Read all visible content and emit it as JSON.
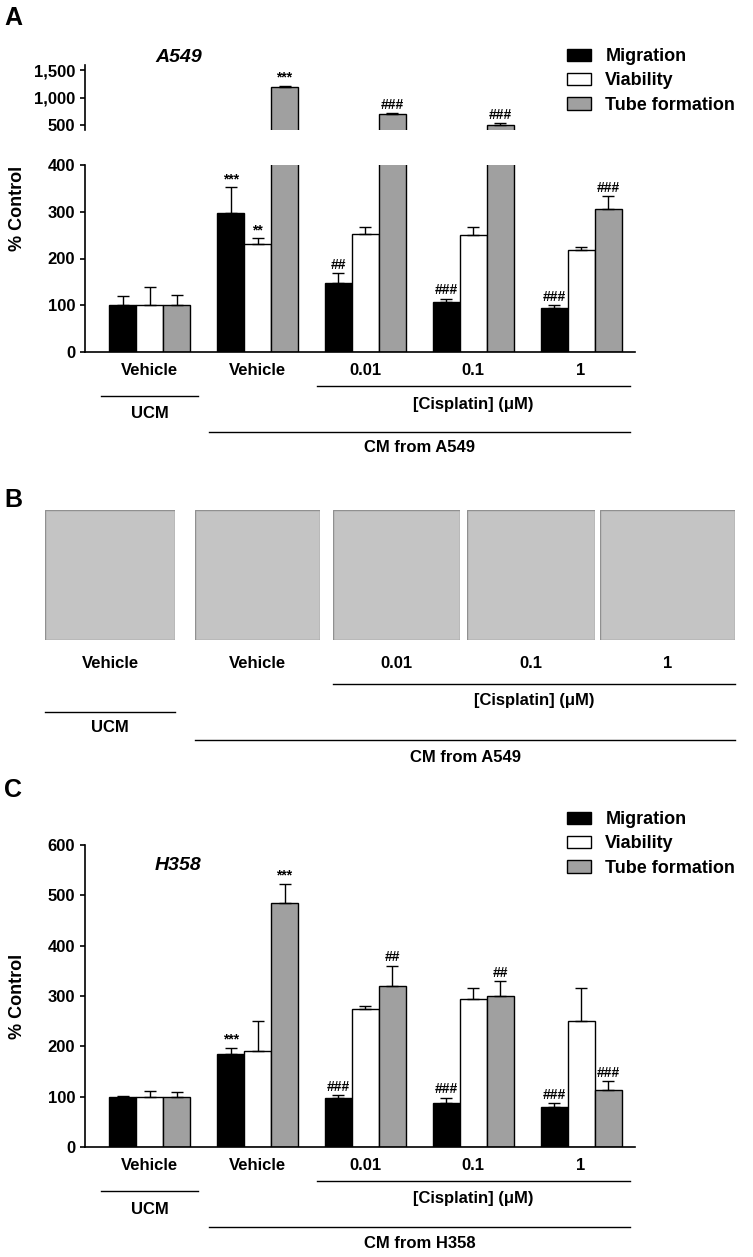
{
  "chart_data": [
    {
      "type": "bar",
      "panel": "A",
      "title": "A549",
      "categories": [
        "Vehicle",
        "Vehicle",
        "0.01",
        "0.1",
        "1"
      ],
      "series": [
        {
          "name": "Migration",
          "color": "#000000",
          "values": [
            100,
            297,
            147,
            107,
            95
          ],
          "errors": [
            20,
            55,
            22,
            7,
            5
          ],
          "annotations": [
            null,
            "***",
            "##",
            "###",
            "###"
          ]
        },
        {
          "name": "Viability",
          "color": "#ffffff",
          "values": [
            100,
            230,
            252,
            250,
            218
          ],
          "errors": [
            40,
            13,
            15,
            17,
            7
          ],
          "annotations": [
            null,
            "**",
            null,
            null,
            null
          ]
        },
        {
          "name": "Tube formation",
          "color": "#a0a0a0",
          "values": [
            100,
            1190,
            700,
            490,
            305
          ],
          "errors": [
            22,
            30,
            10,
            40,
            28
          ],
          "annotations": [
            null,
            "***",
            "###",
            "###",
            "###"
          ]
        }
      ],
      "y_segments": [
        {
          "ylim": [
            0,
            400
          ],
          "yticks": [
            0,
            100,
            200,
            300,
            400
          ]
        },
        {
          "ylim": [
            400,
            1600
          ],
          "yticks": [
            500,
            {
              "value": 1000,
              "label": "1,000"
            },
            {
              "value": 1500,
              "label": "1,500"
            }
          ]
        }
      ],
      "y_label": "% Control",
      "legend": "upper right",
      "groups": [
        {
          "label": "[Cisplatin] (μM)",
          "from": 2,
          "to": 4
        },
        {
          "label": "UCM",
          "from": 0,
          "to": 0
        },
        {
          "label": "CM from A549",
          "from": 1,
          "to": 4
        }
      ]
    },
    {
      "type": "image_row",
      "panel": "B",
      "categories": [
        "Vehicle",
        "Vehicle",
        "0.01",
        "0.1",
        "1"
      ],
      "groups": [
        {
          "label": "[Cisplatin] (μM)",
          "from": 2,
          "to": 4
        },
        {
          "label": "UCM",
          "from": 0,
          "to": 0
        },
        {
          "label": "CM from A549",
          "from": 1,
          "to": 4
        }
      ]
    },
    {
      "type": "bar",
      "panel": "C",
      "title": "H358",
      "categories": [
        "Vehicle",
        "Vehicle",
        "0.01",
        "0.1",
        "1"
      ],
      "series": [
        {
          "name": "Migration",
          "color": "#000000",
          "values": [
            100,
            185,
            98,
            88,
            80
          ],
          "errors": [
            2,
            12,
            5,
            10,
            7
          ],
          "annotations": [
            null,
            "***",
            "###",
            "###",
            "###"
          ]
        },
        {
          "name": "Viability",
          "color": "#ffffff",
          "values": [
            100,
            190,
            275,
            295,
            250
          ],
          "errors": [
            12,
            60,
            5,
            20,
            65
          ],
          "annotations": [
            null,
            null,
            null,
            null,
            null
          ]
        },
        {
          "name": "Tube formation",
          "color": "#a0a0a0",
          "values": [
            100,
            485,
            320,
            300,
            113
          ],
          "errors": [
            10,
            38,
            40,
            30,
            18
          ],
          "annotations": [
            null,
            "***",
            "##",
            "##",
            "###"
          ]
        }
      ],
      "ylim": [
        0,
        600
      ],
      "yticks": [
        0,
        100,
        200,
        300,
        400,
        500,
        600
      ],
      "y_label": "% Control",
      "legend": "upper right",
      "groups": [
        {
          "label": "[Cisplatin] (μM)",
          "from": 2,
          "to": 4
        },
        {
          "label": "UCM",
          "from": 0,
          "to": 0
        },
        {
          "label": "CM from H358",
          "from": 1,
          "to": 4
        }
      ]
    }
  ]
}
